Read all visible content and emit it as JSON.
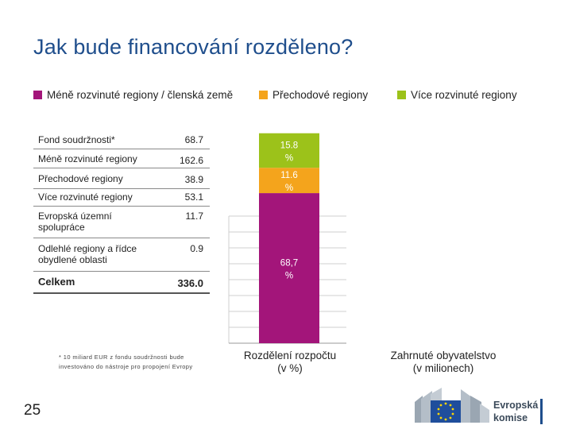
{
  "slide": {
    "title": "Jak bude financování rozděleno?",
    "page_number": "25"
  },
  "legend": [
    {
      "label": "Méně rozvinuté regiony / členská země",
      "color": "#a3157a"
    },
    {
      "label": "Přechodové regiony",
      "color": "#f4a41c"
    },
    {
      "label": "Více rozvinuté regiony",
      "color": "#9cc21a"
    }
  ],
  "table": {
    "rows": [
      {
        "label": "Fond soudržnosti*",
        "value": "68.7"
      },
      {
        "label": "Méně rozvinuté regiony",
        "value": "162.6"
      },
      {
        "label": "Přechodové regiony",
        "value": "38.9"
      },
      {
        "label": "Více rozvinuté regiony",
        "value": "53.1"
      },
      {
        "label": "Evropská územní spolupráce",
        "value": "11.7"
      },
      {
        "label": "Odlehlé regiony a řídce obydlené oblasti",
        "value": "0.9"
      }
    ],
    "total": {
      "label": "Celkem",
      "value": "336.0"
    }
  },
  "footnote": "* 10 miliard EUR z fondu soudržnosti bude investováno do nástroje pro propojení Evropy",
  "chart_data": {
    "type": "bar",
    "stacked": true,
    "categories": [
      "Rozdělení rozpočtu (v %)",
      "Zahrnuté obyvatelstvo (v milionech)"
    ],
    "series": [
      {
        "name": "Méně rozvinuté regiony / členská země",
        "color": "#a3157a",
        "values": [
          68.7,
          null
        ],
        "label": "68,7 %"
      },
      {
        "name": "Přechodové regiony",
        "color": "#f4a41c",
        "values": [
          11.6,
          null
        ],
        "label": "11.6 %"
      },
      {
        "name": "Více rozvinuté regiony",
        "color": "#9cc21a",
        "values": [
          15.8,
          null
        ],
        "label": "15.8 %"
      }
    ],
    "xlabels": [
      "Rozdělení rozpočtu",
      "(v %)",
      "Zahrnuté obyvatelstvo",
      "(v milionech)"
    ],
    "grid": true
  },
  "logo": {
    "text_line1": "Evropská",
    "text_line2": "komise"
  }
}
